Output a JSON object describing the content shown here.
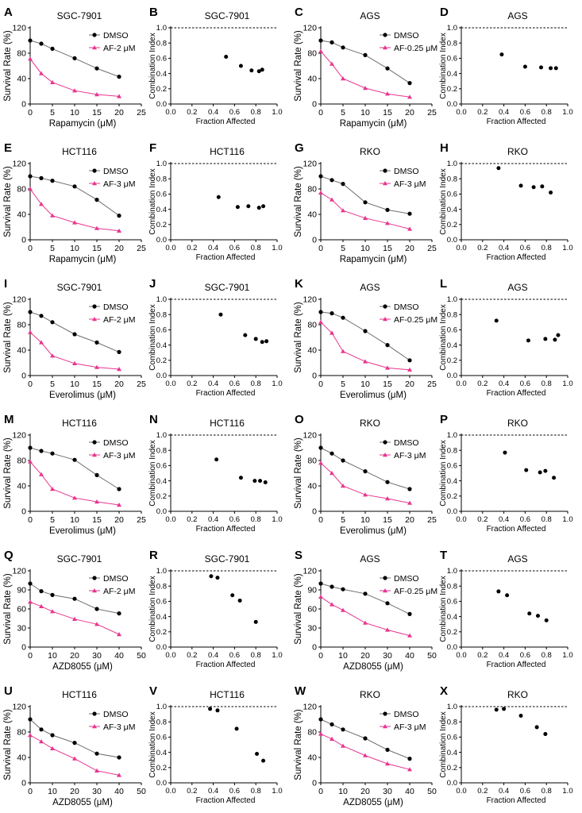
{
  "figure": {
    "colors": {
      "dmso": "#000000",
      "af": "#e8358f",
      "line": "#6e6e6e"
    },
    "survival_ylabel": "Survival Rate (%)",
    "ci_xlabel": "Fraction Affected",
    "ci_ylabel": "Combination Index"
  },
  "chart_data": [
    {
      "label": "A",
      "type": "line",
      "title": "SGC-7901",
      "xlabel": "Rapamycin (μM)",
      "ylabel": "Survival Rate (%)",
      "xlim": [
        0,
        25
      ],
      "ylim": [
        0,
        120
      ],
      "xticks": [
        0,
        5,
        10,
        15,
        20,
        25
      ],
      "yticks": [
        0,
        40,
        80,
        120
      ],
      "x": [
        0,
        2.5,
        5,
        10,
        15,
        20
      ],
      "series": [
        {
          "name": "DMSO",
          "values": [
            100,
            95,
            87,
            72,
            56,
            43
          ]
        },
        {
          "name": "AF-2 μM",
          "values": [
            71,
            48,
            34,
            21,
            15,
            12
          ]
        }
      ]
    },
    {
      "label": "B",
      "type": "scatter",
      "title": "SGC-7901",
      "xlabel": "Fraction Affected",
      "ylabel": "Combination Index",
      "xlim": [
        0,
        1
      ],
      "ylim": [
        0,
        1
      ],
      "xticks": [
        0.0,
        0.2,
        0.4,
        0.6,
        0.8,
        1.0
      ],
      "yticks": [
        0.0,
        0.2,
        0.4,
        0.6,
        0.8,
        1.0
      ],
      "points": [
        [
          0.52,
          0.62
        ],
        [
          0.66,
          0.5
        ],
        [
          0.76,
          0.44
        ],
        [
          0.83,
          0.43
        ],
        [
          0.86,
          0.45
        ]
      ]
    },
    {
      "label": "C",
      "type": "line",
      "title": "AGS",
      "xlabel": "Rapamycin (μM)",
      "ylabel": "Survival Rate (%)",
      "xlim": [
        0,
        25
      ],
      "ylim": [
        0,
        120
      ],
      "xticks": [
        0,
        5,
        10,
        15,
        20,
        25
      ],
      "yticks": [
        0,
        40,
        80,
        120
      ],
      "x": [
        0,
        2.5,
        5,
        10,
        15,
        20
      ],
      "series": [
        {
          "name": "DMSO",
          "values": [
            100,
            97,
            89,
            77,
            56,
            33
          ]
        },
        {
          "name": "AF-0.25 μM",
          "values": [
            83,
            63,
            40,
            25,
            16,
            11
          ]
        }
      ]
    },
    {
      "label": "D",
      "type": "scatter",
      "title": "AGS",
      "xlabel": "Fraction Affected",
      "ylabel": "Combination Index",
      "xlim": [
        0,
        1
      ],
      "ylim": [
        0,
        1
      ],
      "xticks": [
        0.0,
        0.2,
        0.4,
        0.6,
        0.8,
        1.0
      ],
      "yticks": [
        0.0,
        0.2,
        0.4,
        0.6,
        0.8,
        1.0
      ],
      "points": [
        [
          0.38,
          0.65
        ],
        [
          0.6,
          0.49
        ],
        [
          0.75,
          0.48
        ],
        [
          0.84,
          0.47
        ],
        [
          0.89,
          0.47
        ]
      ]
    },
    {
      "label": "E",
      "type": "line",
      "title": "HCT116",
      "xlabel": "Rapamycin (μM)",
      "ylabel": "Survival Rate (%)",
      "xlim": [
        0,
        25
      ],
      "ylim": [
        0,
        120
      ],
      "xticks": [
        0,
        5,
        10,
        15,
        20,
        25
      ],
      "yticks": [
        0,
        40,
        80,
        120
      ],
      "x": [
        0,
        2.5,
        5,
        10,
        15,
        20
      ],
      "series": [
        {
          "name": "DMSO",
          "values": [
            100,
            97,
            93,
            84,
            63,
            38
          ]
        },
        {
          "name": "AF-3 μM",
          "values": [
            80,
            56,
            38,
            27,
            18,
            14
          ]
        }
      ]
    },
    {
      "label": "F",
      "type": "scatter",
      "title": "HCT116",
      "xlabel": "Fraction Affected",
      "ylabel": "Combination Index",
      "xlim": [
        0,
        1
      ],
      "ylim": [
        0,
        1
      ],
      "xticks": [
        0.0,
        0.2,
        0.4,
        0.6,
        0.8,
        1.0
      ],
      "yticks": [
        0.0,
        0.2,
        0.4,
        0.6,
        0.8,
        1.0
      ],
      "points": [
        [
          0.45,
          0.56
        ],
        [
          0.63,
          0.43
        ],
        [
          0.73,
          0.44
        ],
        [
          0.83,
          0.42
        ],
        [
          0.87,
          0.44
        ]
      ]
    },
    {
      "label": "G",
      "type": "line",
      "title": "RKO",
      "xlabel": "Rapamycin (μM)",
      "ylabel": "Survival Rate (%)",
      "xlim": [
        0,
        25
      ],
      "ylim": [
        0,
        120
      ],
      "xticks": [
        0,
        5,
        10,
        15,
        20,
        25
      ],
      "yticks": [
        0,
        40,
        80,
        120
      ],
      "x": [
        0,
        2.5,
        5,
        10,
        15,
        20
      ],
      "series": [
        {
          "name": "DMSO",
          "values": [
            100,
            94,
            88,
            59,
            47,
            41
          ]
        },
        {
          "name": "AF-3 μM",
          "values": [
            74,
            63,
            46,
            34,
            26,
            17
          ]
        }
      ]
    },
    {
      "label": "H",
      "type": "scatter",
      "title": "RKO",
      "xlabel": "Fraction Affected",
      "ylabel": "Combination Index",
      "xlim": [
        0,
        1
      ],
      "ylim": [
        0,
        1
      ],
      "xticks": [
        0.0,
        0.2,
        0.4,
        0.6,
        0.8,
        1.0
      ],
      "yticks": [
        0.0,
        0.2,
        0.4,
        0.6,
        0.8,
        1.0
      ],
      "points": [
        [
          0.35,
          0.94
        ],
        [
          0.56,
          0.71
        ],
        [
          0.68,
          0.69
        ],
        [
          0.76,
          0.7
        ],
        [
          0.84,
          0.62
        ]
      ]
    },
    {
      "label": "I",
      "type": "line",
      "title": "SGC-7901",
      "xlabel": "Everolimus (μM)",
      "ylabel": "Survival Rate (%)",
      "xlim": [
        0,
        25
      ],
      "ylim": [
        0,
        120
      ],
      "xticks": [
        0,
        5,
        10,
        15,
        20,
        25
      ],
      "yticks": [
        0,
        40,
        80,
        120
      ],
      "x": [
        0,
        2.5,
        5,
        10,
        15,
        20
      ],
      "series": [
        {
          "name": "DMSO",
          "values": [
            100,
            94,
            84,
            65,
            52,
            37
          ]
        },
        {
          "name": "AF-2 μM",
          "values": [
            68,
            52,
            31,
            19,
            13,
            10
          ]
        }
      ]
    },
    {
      "label": "J",
      "type": "scatter",
      "title": "SGC-7901",
      "xlabel": "Fraction Affected",
      "ylabel": "Combination Index",
      "xlim": [
        0,
        1
      ],
      "ylim": [
        0,
        1
      ],
      "xticks": [
        0.0,
        0.2,
        0.4,
        0.6,
        0.8,
        1.0
      ],
      "yticks": [
        0.0,
        0.2,
        0.4,
        0.6,
        0.8,
        1.0
      ],
      "points": [
        [
          0.47,
          0.8
        ],
        [
          0.7,
          0.53
        ],
        [
          0.8,
          0.48
        ],
        [
          0.86,
          0.44
        ],
        [
          0.9,
          0.45
        ]
      ]
    },
    {
      "label": "K",
      "type": "line",
      "title": "AGS",
      "xlabel": "Everolimus (μM)",
      "ylabel": "Survival Rate (%)",
      "xlim": [
        0,
        25
      ],
      "ylim": [
        0,
        120
      ],
      "xticks": [
        0,
        5,
        10,
        15,
        20,
        25
      ],
      "yticks": [
        0,
        40,
        80,
        120
      ],
      "x": [
        0,
        2.5,
        5,
        10,
        15,
        20
      ],
      "series": [
        {
          "name": "DMSO",
          "values": [
            100,
            98,
            91,
            70,
            48,
            24
          ]
        },
        {
          "name": "AF-0.25 μM",
          "values": [
            84,
            67,
            38,
            22,
            12,
            9
          ]
        }
      ]
    },
    {
      "label": "L",
      "type": "scatter",
      "title": "AGS",
      "xlabel": "Fraction Affected",
      "ylabel": "Combination Index",
      "xlim": [
        0,
        1
      ],
      "ylim": [
        0,
        1
      ],
      "xticks": [
        0.0,
        0.2,
        0.4,
        0.6,
        0.8,
        1.0
      ],
      "yticks": [
        0.0,
        0.2,
        0.4,
        0.6,
        0.8,
        1.0
      ],
      "points": [
        [
          0.33,
          0.72
        ],
        [
          0.63,
          0.46
        ],
        [
          0.79,
          0.48
        ],
        [
          0.88,
          0.47
        ],
        [
          0.91,
          0.53
        ]
      ]
    },
    {
      "label": "M",
      "type": "line",
      "title": "HCT116",
      "xlabel": "Everolimus (μM)",
      "ylabel": "Survival Rate (%)",
      "xlim": [
        0,
        25
      ],
      "ylim": [
        0,
        120
      ],
      "xticks": [
        0,
        5,
        10,
        15,
        20,
        25
      ],
      "yticks": [
        0,
        40,
        80,
        120
      ],
      "x": [
        0,
        2.5,
        5,
        10,
        15,
        20
      ],
      "series": [
        {
          "name": "DMSO",
          "values": [
            100,
            95,
            91,
            81,
            57,
            35
          ]
        },
        {
          "name": "AF-3 μM",
          "values": [
            78,
            58,
            35,
            21,
            15,
            10
          ]
        }
      ]
    },
    {
      "label": "N",
      "type": "scatter",
      "title": "HCT116",
      "xlabel": "Fraction Affected",
      "ylabel": "Combination Index",
      "xlim": [
        0,
        1
      ],
      "ylim": [
        0,
        1
      ],
      "xticks": [
        0.0,
        0.2,
        0.4,
        0.6,
        0.8,
        1.0
      ],
      "yticks": [
        0.0,
        0.2,
        0.4,
        0.6,
        0.8,
        1.0
      ],
      "points": [
        [
          0.43,
          0.68
        ],
        [
          0.66,
          0.44
        ],
        [
          0.79,
          0.4
        ],
        [
          0.84,
          0.4
        ],
        [
          0.89,
          0.38
        ]
      ]
    },
    {
      "label": "O",
      "type": "line",
      "title": "RKO",
      "xlabel": "Everolimus (μM)",
      "ylabel": "Survival Rate (%)",
      "xlim": [
        0,
        25
      ],
      "ylim": [
        0,
        120
      ],
      "xticks": [
        0,
        5,
        10,
        15,
        20,
        25
      ],
      "yticks": [
        0,
        40,
        80,
        120
      ],
      "x": [
        0,
        2.5,
        5,
        10,
        15,
        20
      ],
      "series": [
        {
          "name": "DMSO",
          "values": [
            100,
            91,
            80,
            63,
            46,
            35
          ]
        },
        {
          "name": "AF-3 μM",
          "values": [
            76,
            60,
            40,
            26,
            20,
            13
          ]
        }
      ]
    },
    {
      "label": "P",
      "type": "scatter",
      "title": "RKO",
      "xlabel": "Fraction Affected",
      "ylabel": "Combination Index",
      "xlim": [
        0,
        1
      ],
      "ylim": [
        0,
        1
      ],
      "xticks": [
        0.0,
        0.2,
        0.4,
        0.6,
        0.8,
        1.0
      ],
      "yticks": [
        0.0,
        0.2,
        0.4,
        0.6,
        0.8,
        1.0
      ],
      "points": [
        [
          0.41,
          0.77
        ],
        [
          0.61,
          0.54
        ],
        [
          0.74,
          0.51
        ],
        [
          0.79,
          0.53
        ],
        [
          0.87,
          0.44
        ]
      ]
    },
    {
      "label": "Q",
      "type": "line",
      "title": "SGC-7901",
      "xlabel": "AZD8055 (μM)",
      "ylabel": "Survival Rate (%)",
      "xlim": [
        0,
        50
      ],
      "ylim": [
        0,
        120
      ],
      "xticks": [
        0,
        10,
        20,
        30,
        40,
        50
      ],
      "yticks": [
        0,
        30,
        60,
        90,
        120
      ],
      "x": [
        0,
        5,
        10,
        20,
        30,
        40
      ],
      "series": [
        {
          "name": "DMSO",
          "values": [
            100,
            88,
            82,
            76,
            60,
            53
          ]
        },
        {
          "name": "AF-2 μM",
          "values": [
            71,
            64,
            56,
            44,
            36,
            20
          ]
        }
      ]
    },
    {
      "label": "R",
      "type": "scatter",
      "title": "SGC-7901",
      "xlabel": "Fraction Affected",
      "ylabel": "Combination Index",
      "xlim": [
        0,
        1
      ],
      "ylim": [
        0,
        1
      ],
      "xticks": [
        0.0,
        0.2,
        0.4,
        0.6,
        0.8,
        1.0
      ],
      "yticks": [
        0.0,
        0.2,
        0.4,
        0.6,
        0.8,
        1.0
      ],
      "points": [
        [
          0.38,
          0.93
        ],
        [
          0.44,
          0.91
        ],
        [
          0.58,
          0.68
        ],
        [
          0.65,
          0.61
        ],
        [
          0.8,
          0.33
        ]
      ]
    },
    {
      "label": "S",
      "type": "line",
      "title": "AGS",
      "xlabel": "AZD8055 (μM)",
      "ylabel": "Survival Rate (%)",
      "xlim": [
        0,
        50
      ],
      "ylim": [
        0,
        120
      ],
      "xticks": [
        0,
        10,
        20,
        30,
        40,
        50
      ],
      "yticks": [
        0,
        30,
        60,
        90,
        120
      ],
      "x": [
        0,
        5,
        10,
        20,
        30,
        40
      ],
      "series": [
        {
          "name": "DMSO",
          "values": [
            100,
            95,
            91,
            84,
            69,
            52
          ]
        },
        {
          "name": "AF-0.25 μM",
          "values": [
            79,
            67,
            58,
            38,
            27,
            18
          ]
        }
      ]
    },
    {
      "label": "T",
      "type": "scatter",
      "title": "AGS",
      "xlabel": "Fraction Affected",
      "ylabel": "Combination Index",
      "xlim": [
        0,
        1
      ],
      "ylim": [
        0,
        1
      ],
      "xticks": [
        0.0,
        0.2,
        0.4,
        0.6,
        0.8,
        1.0
      ],
      "yticks": [
        0.0,
        0.2,
        0.4,
        0.6,
        0.8,
        1.0
      ],
      "points": [
        [
          0.35,
          0.73
        ],
        [
          0.43,
          0.68
        ],
        [
          0.64,
          0.44
        ],
        [
          0.72,
          0.41
        ],
        [
          0.8,
          0.35
        ]
      ]
    },
    {
      "label": "U",
      "type": "line",
      "title": "HCT116",
      "xlabel": "AZD8055 (μM)",
      "ylabel": "Survival Rate (%)",
      "xlim": [
        0,
        50
      ],
      "ylim": [
        0,
        120
      ],
      "xticks": [
        0,
        10,
        20,
        30,
        40,
        50
      ],
      "yticks": [
        0,
        40,
        80,
        120
      ],
      "x": [
        0,
        5,
        10,
        20,
        30,
        40
      ],
      "series": [
        {
          "name": "DMSO",
          "values": [
            100,
            84,
            75,
            63,
            46,
            40
          ]
        },
        {
          "name": "AF-3 μM",
          "values": [
            75,
            65,
            54,
            38,
            19,
            12
          ]
        }
      ]
    },
    {
      "label": "V",
      "type": "scatter",
      "title": "HCT116",
      "xlabel": "Fraction Affected",
      "ylabel": "Combination Index",
      "xlim": [
        0,
        1
      ],
      "ylim": [
        0,
        1
      ],
      "xticks": [
        0.0,
        0.2,
        0.4,
        0.6,
        0.8,
        1.0
      ],
      "yticks": [
        0.0,
        0.2,
        0.4,
        0.6,
        0.8,
        1.0
      ],
      "points": [
        [
          0.37,
          0.97
        ],
        [
          0.44,
          0.95
        ],
        [
          0.62,
          0.71
        ],
        [
          0.81,
          0.38
        ],
        [
          0.87,
          0.29
        ]
      ]
    },
    {
      "label": "W",
      "type": "line",
      "title": "RKO",
      "xlabel": "AZD8055 (μM)",
      "ylabel": "Survival Rate (%)",
      "xlim": [
        0,
        50
      ],
      "ylim": [
        0,
        120
      ],
      "xticks": [
        0,
        10,
        20,
        30,
        40,
        50
      ],
      "yticks": [
        0,
        40,
        80,
        120
      ],
      "x": [
        0,
        5,
        10,
        20,
        30,
        40
      ],
      "series": [
        {
          "name": "DMSO",
          "values": [
            100,
            92,
            84,
            70,
            52,
            38
          ]
        },
        {
          "name": "AF-3 μM",
          "values": [
            77,
            69,
            58,
            43,
            30,
            21
          ]
        }
      ]
    },
    {
      "label": "X",
      "type": "scatter",
      "title": "RKO",
      "xlabel": "Fraction Affected",
      "ylabel": "Combination Index",
      "xlim": [
        0,
        1
      ],
      "ylim": [
        0,
        1
      ],
      "xticks": [
        0.0,
        0.2,
        0.4,
        0.6,
        0.8,
        1.0
      ],
      "yticks": [
        0.0,
        0.2,
        0.4,
        0.6,
        0.8,
        1.0
      ],
      "points": [
        [
          0.33,
          0.96
        ],
        [
          0.4,
          0.97
        ],
        [
          0.56,
          0.88
        ],
        [
          0.71,
          0.73
        ],
        [
          0.79,
          0.64
        ]
      ]
    }
  ]
}
